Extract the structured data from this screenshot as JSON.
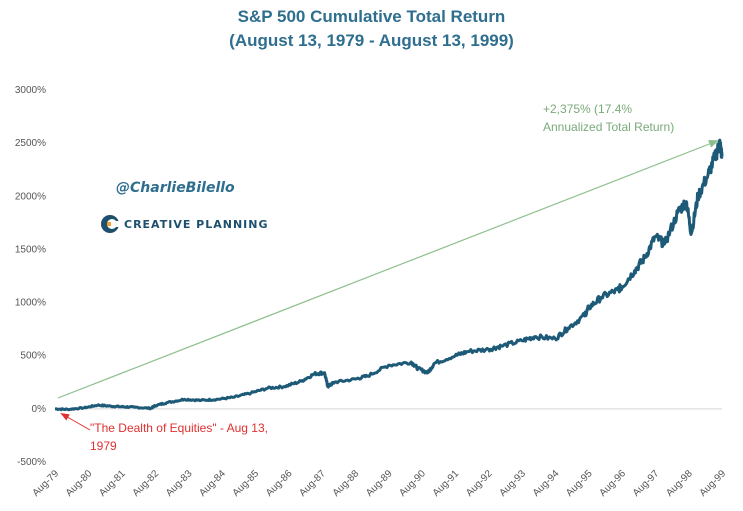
{
  "chart_data": {
    "type": "line",
    "title": "S&P 500 Cumulative Total Return",
    "subtitle": "(August 13, 1979 - August 13, 1999)",
    "xlabel": "",
    "ylabel": "",
    "ylim": [
      -500,
      3000
    ],
    "yticks": [
      "3000%",
      "2500%",
      "2000%",
      "1500%",
      "1000%",
      "500%",
      "0%",
      "-500%"
    ],
    "ytick_values": [
      3000,
      2500,
      2000,
      1500,
      1000,
      500,
      0,
      -500
    ],
    "xticks": [
      "Aug-79",
      "Aug-80",
      "Aug-81",
      "Aug-82",
      "Aug-83",
      "Aug-84",
      "Aug-85",
      "Aug-86",
      "Aug-87",
      "Aug-88",
      "Aug-89",
      "Aug-90",
      "Aug-91",
      "Aug-92",
      "Aug-93",
      "Aug-94",
      "Aug-95",
      "Aug-96",
      "Aug-97",
      "Aug-98",
      "Aug-99"
    ],
    "grid": false,
    "legend": "none",
    "series_color": "#1d5a78",
    "x": [
      1979.62,
      1980.0,
      1980.5,
      1980.9,
      1981.3,
      1981.62,
      1982.0,
      1982.5,
      1982.62,
      1983.0,
      1983.5,
      1984.0,
      1984.5,
      1985.0,
      1985.5,
      1986.0,
      1986.5,
      1987.0,
      1987.4,
      1987.7,
      1987.8,
      1988.0,
      1988.62,
      1989.0,
      1989.62,
      1990.3,
      1990.5,
      1990.8,
      1991.0,
      1991.62,
      1992.0,
      1992.62,
      1993.0,
      1993.62,
      1994.0,
      1994.62,
      1995.0,
      1995.5,
      1995.62,
      1996.0,
      1996.5,
      1996.62,
      1997.0,
      1997.3,
      1997.62,
      1997.9,
      1998.3,
      1998.55,
      1998.7,
      1998.9,
      1999.2,
      1999.45,
      1999.55,
      1999.62
    ],
    "values": [
      0,
      -5,
      10,
      35,
      25,
      20,
      15,
      5,
      30,
      60,
      90,
      80,
      90,
      110,
      150,
      195,
      210,
      260,
      330,
      340,
      210,
      250,
      280,
      310,
      410,
      440,
      380,
      340,
      430,
      500,
      540,
      560,
      590,
      640,
      680,
      660,
      760,
      880,
      950,
      1050,
      1120,
      1150,
      1300,
      1420,
      1620,
      1550,
      1850,
      1950,
      1650,
      2000,
      2200,
      2400,
      2500,
      2375
    ],
    "annotations": {
      "end_label_1": "+2,375% (17.4%",
      "end_label_2": "Annualized Total Return)",
      "start_label_1": "\"The Dealth of Equities\" - Aug 13,",
      "start_label_2": "1979"
    }
  },
  "branding": {
    "handle": "@CharlieBilello",
    "company": "CREATIVE PLANNING",
    "logo_letter": "C",
    "colors": {
      "title": "#2e6e8e",
      "line": "#1d5a78",
      "arrow": "#8cbf8c",
      "red": "#e03030"
    }
  }
}
